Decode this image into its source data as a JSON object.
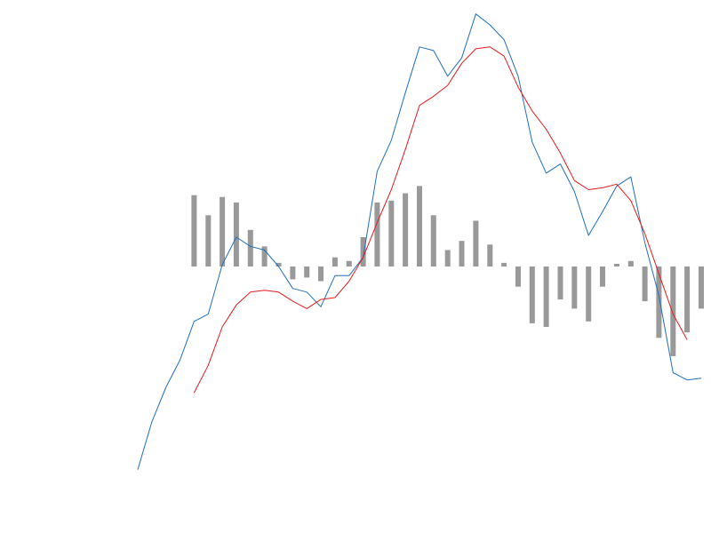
{
  "chart_data": {
    "type": "line",
    "title": "",
    "xlabel": "",
    "ylabel": "",
    "grid": false,
    "legend": "none",
    "x": [
      0,
      1,
      2,
      3,
      4,
      5,
      6,
      7,
      8,
      9,
      10,
      11,
      12,
      13,
      14,
      15,
      16,
      17,
      18,
      19,
      20,
      21,
      22,
      23,
      24,
      25,
      26,
      27,
      28,
      29,
      30,
      31,
      32,
      33,
      34,
      35,
      36,
      37,
      38,
      39,
      40
    ],
    "ylim": [
      -1.45,
      1.45
    ],
    "series": [
      {
        "role": "macd",
        "color": "#1f6fbf",
        "values": [
          -1.11,
          -0.85,
          -0.66,
          -0.51,
          -0.3,
          -0.26,
          0.01,
          0.16,
          0.11,
          0.09,
          0.0,
          -0.12,
          -0.14,
          -0.22,
          -0.05,
          -0.05,
          0.05,
          0.52,
          0.69,
          0.95,
          1.2,
          1.18,
          1.04,
          1.14,
          1.38,
          1.32,
          1.24,
          1.04,
          0.68,
          0.51,
          0.56,
          0.41,
          0.17,
          0.3,
          0.44,
          0.49,
          0.13,
          -0.16,
          -0.58,
          -0.62,
          -0.61
        ]
      },
      {
        "role": "signal",
        "color": "#e8191c",
        "values": [
          null,
          null,
          null,
          null,
          -0.69,
          -0.54,
          -0.33,
          -0.21,
          -0.14,
          -0.13,
          -0.14,
          -0.19,
          -0.23,
          -0.18,
          -0.17,
          -0.08,
          0.05,
          0.24,
          0.42,
          0.64,
          0.88,
          0.93,
          0.99,
          1.11,
          1.19,
          1.2,
          1.15,
          0.98,
          0.85,
          0.75,
          0.62,
          0.47,
          0.42,
          0.43,
          0.45,
          0.36,
          0.18,
          -0.04,
          -0.26,
          -0.4,
          null
        ]
      },
      {
        "role": "histogram",
        "color": "#999999",
        "values": [
          null,
          null,
          null,
          null,
          0.39,
          0.28,
          0.38,
          0.35,
          0.2,
          0.11,
          0.02,
          -0.07,
          -0.06,
          -0.08,
          0.05,
          0.03,
          0.16,
          0.35,
          0.36,
          0.4,
          0.44,
          0.28,
          0.09,
          0.14,
          0.25,
          0.12,
          0.02,
          -0.11,
          -0.31,
          -0.33,
          -0.18,
          -0.23,
          -0.3,
          -0.11,
          0.01,
          0.03,
          -0.19,
          -0.39,
          -0.49,
          -0.36,
          -0.23
        ]
      }
    ]
  }
}
